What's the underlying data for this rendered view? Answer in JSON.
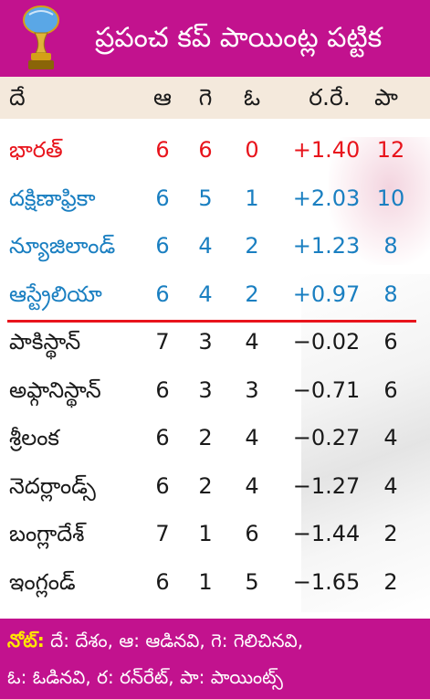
{
  "header": {
    "title": "ప్రపంచ కప్ పాయింట్ల పట్టిక"
  },
  "columns": {
    "team": "దే",
    "played": "ఆ",
    "won": "గె",
    "lost": "ఓ",
    "nrr": "ర.రే.",
    "points": "పా"
  },
  "colors": {
    "accent": "#c2128e",
    "qualified_top": "#e8141c",
    "qualified": "#1a7fc1",
    "others": "#1a1a1a",
    "separator": "#e8141c",
    "note_label": "#ffe600"
  },
  "rows": [
    {
      "team": "భారత్",
      "played": "6",
      "won": "6",
      "lost": "0",
      "nrr": "+1.40",
      "points": "12",
      "group": "top"
    },
    {
      "team": "దక్షిణాఫ్రికా",
      "played": "6",
      "won": "5",
      "lost": "1",
      "nrr": "+2.03",
      "points": "10",
      "group": "qualified"
    },
    {
      "team": "న్యూజిలాండ్",
      "played": "6",
      "won": "4",
      "lost": "2",
      "nrr": "+1.23",
      "points": "8",
      "group": "qualified"
    },
    {
      "team": "ఆస్ట్రేలియా",
      "played": "6",
      "won": "4",
      "lost": "2",
      "nrr": "+0.97",
      "points": "8",
      "group": "qualified"
    },
    {
      "team": "పాకిస్థాన్",
      "played": "7",
      "won": "3",
      "lost": "4",
      "nrr": "−0.02",
      "points": "6",
      "group": "others"
    },
    {
      "team": "అఫ్గానిస్థాన్",
      "played": "6",
      "won": "3",
      "lost": "3",
      "nrr": "−0.71",
      "points": "6",
      "group": "others"
    },
    {
      "team": "శ్రీలంక",
      "played": "6",
      "won": "2",
      "lost": "4",
      "nrr": "−0.27",
      "points": "4",
      "group": "others"
    },
    {
      "team": "నెదర్లాండ్స్",
      "played": "6",
      "won": "2",
      "lost": "4",
      "nrr": "−1.27",
      "points": "4",
      "group": "others"
    },
    {
      "team": "బంగ్లాదేశ్",
      "played": "7",
      "won": "1",
      "lost": "6",
      "nrr": "−1.44",
      "points": "2",
      "group": "others"
    },
    {
      "team": "ఇంగ్లండ్",
      "played": "6",
      "won": "1",
      "lost": "5",
      "nrr": "−1.65",
      "points": "2",
      "group": "others"
    }
  ],
  "footer": {
    "label": "నోట్:",
    "line1": "దే: దేశం, ఆ: ఆడినవి, గె: గెలిచినవి,",
    "line2": "ఓ: ఓడినవి, ర: రన్‌రేట్, పా: పాయింట్స్"
  }
}
